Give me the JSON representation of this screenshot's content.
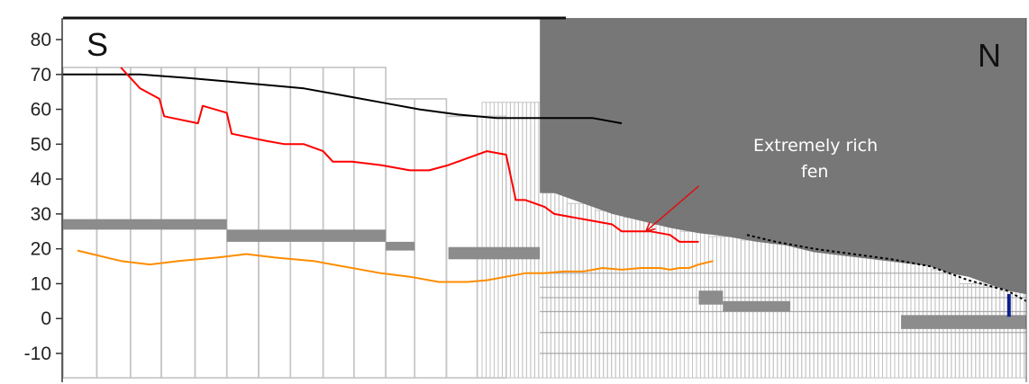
{
  "labels": {
    "south": "S",
    "north": "N",
    "annotation_line1": "Extremely rich",
    "annotation_line2": "fen"
  },
  "chart_data": {
    "type": "line",
    "y_ticks": [
      80,
      70,
      60,
      50,
      40,
      30,
      20,
      10,
      0,
      -10
    ],
    "ylim": [
      -17,
      85
    ],
    "x_units": "relative distance along transect (0 = left edge, 100 = right edge)",
    "xlim": [
      0,
      100
    ],
    "grid": false,
    "legend": "none",
    "colors": {
      "black_line": "#000000",
      "red_line": "#ff0000",
      "orange_line": "#ff8c00",
      "shaded_area": "#777777",
      "grey_bars": "#8c8c8c",
      "column_outlines": "#c4c4c4",
      "annotation_arrow": "#dd1111",
      "north_marker": "#0a1e8c"
    },
    "series": [
      {
        "color": "black",
        "x": [
          0,
          4,
          8,
          13,
          17,
          21,
          25,
          29,
          33,
          37,
          41,
          45,
          49,
          53,
          55,
          58
        ],
        "y": [
          70,
          70,
          70,
          69,
          68,
          67,
          66,
          64,
          62,
          60,
          58.5,
          57.5,
          57.5,
          57.5,
          57.5,
          56
        ]
      },
      {
        "color": "black-dotted",
        "x": [
          71,
          74,
          78,
          82,
          86,
          90,
          94,
          98,
          100
        ],
        "y": [
          24,
          22,
          20,
          18.5,
          17,
          15,
          11,
          8,
          5
        ]
      },
      {
        "color": "red",
        "x": [
          6,
          8,
          10,
          10.5,
          14,
          14.5,
          17,
          17.5,
          21,
          23,
          25,
          27,
          28,
          30,
          33,
          36,
          38,
          40,
          42,
          44,
          46,
          47,
          47.2,
          48,
          50,
          51,
          53,
          55,
          57,
          58,
          59,
          61,
          63,
          64,
          64.5,
          66
        ],
        "y": [
          72,
          66,
          63,
          58,
          56,
          61,
          59,
          53,
          51,
          50,
          50,
          48,
          45,
          45,
          44,
          42.5,
          42.5,
          44,
          46,
          48,
          47,
          34,
          34,
          34,
          32,
          30,
          29,
          28,
          27,
          25,
          25,
          25,
          24,
          22,
          22,
          22
        ]
      },
      {
        "color": "orange",
        "x": [
          1.5,
          3,
          6,
          9,
          12,
          16,
          19,
          22,
          26,
          29,
          33,
          36,
          39,
          42,
          44,
          46,
          48,
          50,
          52,
          54,
          56,
          58,
          60,
          61,
          62,
          63,
          64,
          65,
          66,
          67.5
        ],
        "y": [
          19.5,
          18.5,
          16.5,
          15.5,
          16.5,
          17.5,
          18.5,
          17.5,
          16.5,
          15,
          13,
          12,
          10.5,
          10.5,
          11,
          12,
          13,
          13,
          13.5,
          13.5,
          14.5,
          14,
          14.5,
          14.5,
          14.5,
          14,
          14.5,
          14.5,
          15.5,
          16.5
        ]
      }
    ],
    "shaded_area": {
      "x": [
        49.5,
        49.5,
        100,
        100,
        98,
        96,
        94,
        92,
        90,
        87,
        84,
        81,
        78,
        75,
        72,
        69,
        66,
        63,
        60,
        57,
        54,
        51,
        49.5
      ],
      "y": [
        87,
        87,
        87,
        7,
        8,
        10,
        12,
        13,
        15,
        16,
        17,
        18,
        19,
        21,
        22,
        23.5,
        24.5,
        26,
        28,
        30,
        33,
        36,
        36
      ]
    },
    "grey_bars": [
      {
        "x0": 0,
        "x1": 17,
        "y0": 25.5,
        "y1": 28.5
      },
      {
        "x0": 17,
        "x1": 33.5,
        "y0": 22,
        "y1": 25.5
      },
      {
        "x0": 33.5,
        "x1": 36.5,
        "y0": 19.5,
        "y1": 22
      },
      {
        "x0": 40,
        "x1": 49.5,
        "y0": 17,
        "y1": 20.5
      },
      {
        "x0": 66,
        "x1": 68.5,
        "y0": 4,
        "y1": 8
      },
      {
        "x0": 68.5,
        "x1": 75.5,
        "y0": 2,
        "y1": 5
      },
      {
        "x0": 87,
        "x1": 100,
        "y0": -3,
        "y1": 1
      }
    ],
    "columns": {
      "wide": [
        {
          "x0": 0,
          "x1": 3.5,
          "top": 72
        },
        {
          "x0": 3.5,
          "x1": 7,
          "top": 72
        },
        {
          "x0": 7,
          "x1": 10.2,
          "top": 72
        },
        {
          "x0": 10.2,
          "x1": 13.7,
          "top": 72
        },
        {
          "x0": 13.7,
          "x1": 17,
          "top": 72
        },
        {
          "x0": 17,
          "x1": 20.3,
          "top": 72
        },
        {
          "x0": 20.3,
          "x1": 23.6,
          "top": 72
        },
        {
          "x0": 23.6,
          "x1": 27,
          "top": 72
        },
        {
          "x0": 27,
          "x1": 30.2,
          "top": 72
        },
        {
          "x0": 30.2,
          "x1": 33.5,
          "top": 72
        },
        {
          "x0": 33.5,
          "x1": 36.5,
          "top": 63
        },
        {
          "x0": 36.5,
          "x1": 39.8,
          "top": 63
        },
        {
          "x0": 39.8,
          "x1": 43,
          "top": 58
        },
        {
          "x0": 43,
          "x1": 46,
          "top": 58
        }
      ],
      "narrow_start": 43.5,
      "narrow_end": 100,
      "narrow_width": 0.42,
      "narrow_top": [
        {
          "from": 43.5,
          "to": 49.5,
          "top": 62
        },
        {
          "from": 49.5,
          "to": 52,
          "top": 36
        },
        {
          "from": 52,
          "to": 55,
          "top": 33
        },
        {
          "from": 55,
          "to": 58,
          "top": 31
        },
        {
          "from": 58,
          "to": 61,
          "top": 29
        },
        {
          "from": 61,
          "to": 64,
          "top": 27
        },
        {
          "from": 64,
          "to": 67,
          "top": 25
        },
        {
          "from": 67,
          "to": 70,
          "top": 23.5
        },
        {
          "from": 70,
          "to": 73,
          "top": 22.5
        },
        {
          "from": 73,
          "to": 76,
          "top": 21.5
        },
        {
          "from": 76,
          "to": 79,
          "top": 20.5
        },
        {
          "from": 79,
          "to": 82,
          "top": 20
        },
        {
          "from": 82,
          "to": 85,
          "top": 19.5
        },
        {
          "from": 85,
          "to": 88,
          "top": 22
        },
        {
          "from": 88,
          "to": 90,
          "top": 18
        },
        {
          "from": 90,
          "to": 93,
          "top": 14
        },
        {
          "from": 93,
          "to": 95,
          "top": 10
        },
        {
          "from": 95,
          "to": 97,
          "top": 12
        },
        {
          "from": 97,
          "to": 100,
          "top": 8
        }
      ],
      "column_bottom": -17
    },
    "lower_strata": [
      {
        "x0": 49.5,
        "x1": 100,
        "y": 13
      },
      {
        "x0": 49.5,
        "x1": 100,
        "y": 9
      },
      {
        "x0": 49.5,
        "x1": 100,
        "y": 6
      },
      {
        "x0": 49.5,
        "x1": 100,
        "y": 2
      },
      {
        "x0": 49.5,
        "x1": 100,
        "y": -4
      },
      {
        "x0": 49.5,
        "x1": 100,
        "y": -10
      }
    ],
    "annotation_arrow": {
      "from_x": 66,
      "from_y": 38,
      "to_x": 60.5,
      "to_y": 25
    },
    "north_marker": {
      "x": 98.2,
      "y_bottom": 0,
      "y_top": 6
    }
  }
}
